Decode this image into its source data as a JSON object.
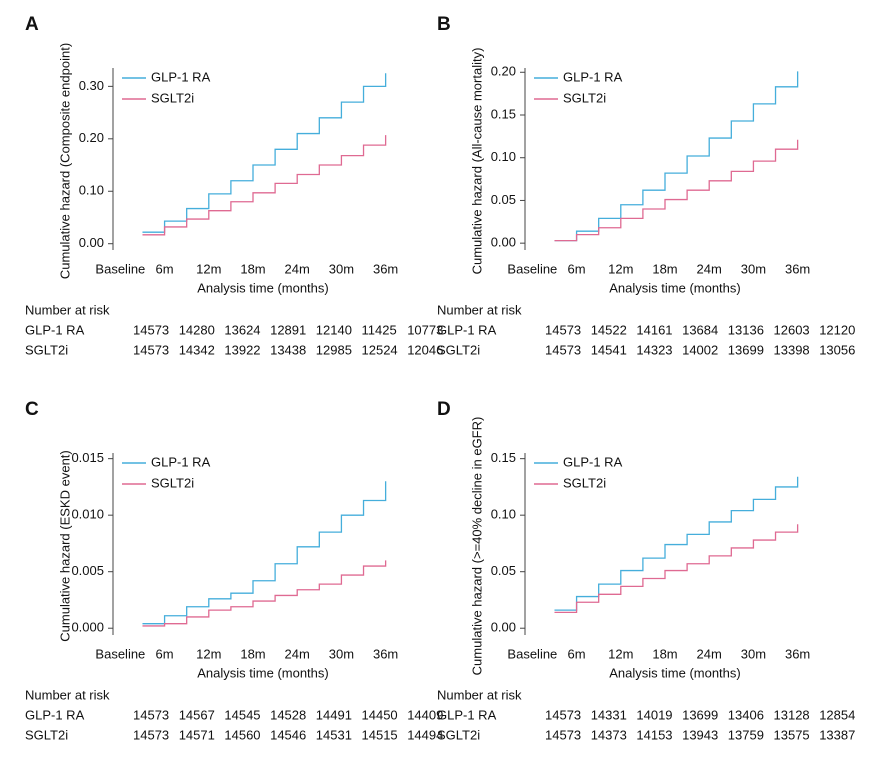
{
  "chart_data": [
    {
      "type": "line",
      "step": true,
      "label": "A",
      "ylabel": "Cumulative hazard (Composite endpoint)",
      "xlabel": "Analysis time (months)",
      "x": [
        3,
        6,
        9,
        12,
        15,
        18,
        21,
        24,
        27,
        30,
        33,
        36
      ],
      "xlim": [
        -1,
        37
      ],
      "xticks": [
        {
          "value": 0,
          "label": "Baseline"
        },
        {
          "value": 6,
          "label": "6m"
        },
        {
          "value": 12,
          "label": "12m"
        },
        {
          "value": 18,
          "label": "18m"
        },
        {
          "value": 24,
          "label": "24m"
        },
        {
          "value": 30,
          "label": "30m"
        },
        {
          "value": 36,
          "label": "36m"
        }
      ],
      "ylim": [
        -0.012,
        0.335
      ],
      "yticks": [
        {
          "value": 0,
          "label": "0.00"
        },
        {
          "value": 0.1,
          "label": "0.10"
        },
        {
          "value": 0.2,
          "label": "0.20"
        },
        {
          "value": 0.3,
          "label": "0.30"
        }
      ],
      "legend": "upper left",
      "series": [
        {
          "name": "GLP-1 RA",
          "color": "#45aedb",
          "values": [
            0.022,
            0.043,
            0.067,
            0.095,
            0.12,
            0.15,
            0.18,
            0.21,
            0.24,
            0.27,
            0.3,
            0.325
          ]
        },
        {
          "name": "SGLT2i",
          "color": "#df6a92",
          "values": [
            0.017,
            0.032,
            0.047,
            0.063,
            0.08,
            0.097,
            0.115,
            0.132,
            0.15,
            0.168,
            0.188,
            0.207
          ]
        }
      ],
      "risk_table": {
        "title": "Number at risk",
        "rows": [
          {
            "name": "GLP-1 RA",
            "values": [
              14573,
              14280,
              13624,
              12891,
              12140,
              11425,
              10773
            ]
          },
          {
            "name": "SGLT2i",
            "values": [
              14573,
              14342,
              13922,
              13438,
              12985,
              12524,
              12046
            ]
          }
        ]
      }
    },
    {
      "type": "line",
      "step": true,
      "label": "B",
      "ylabel": "Cumulative hazard (All-cause mortality)",
      "xlabel": "Analysis time (months)",
      "x": [
        3,
        6,
        9,
        12,
        15,
        18,
        21,
        24,
        27,
        30,
        33,
        36
      ],
      "xlim": [
        -1,
        37
      ],
      "xticks": [
        {
          "value": 0,
          "label": "Baseline"
        },
        {
          "value": 6,
          "label": "6m"
        },
        {
          "value": 12,
          "label": "12m"
        },
        {
          "value": 18,
          "label": "18m"
        },
        {
          "value": 24,
          "label": "24m"
        },
        {
          "value": 30,
          "label": "30m"
        },
        {
          "value": 36,
          "label": "36m"
        }
      ],
      "ylim": [
        -0.008,
        0.205
      ],
      "yticks": [
        {
          "value": 0,
          "label": "0.00"
        },
        {
          "value": 0.05,
          "label": "0.05"
        },
        {
          "value": 0.1,
          "label": "0.10"
        },
        {
          "value": 0.15,
          "label": "0.15"
        },
        {
          "value": 0.2,
          "label": "0.20"
        }
      ],
      "legend": "upper left",
      "series": [
        {
          "name": "GLP-1 RA",
          "color": "#45aedb",
          "values": [
            0.003,
            0.014,
            0.029,
            0.045,
            0.062,
            0.082,
            0.102,
            0.123,
            0.143,
            0.163,
            0.183,
            0.201
          ]
        },
        {
          "name": "SGLT2i",
          "color": "#df6a92",
          "values": [
            0.003,
            0.01,
            0.018,
            0.029,
            0.04,
            0.051,
            0.062,
            0.073,
            0.084,
            0.096,
            0.11,
            0.121
          ]
        }
      ],
      "risk_table": {
        "title": "Number at risk",
        "rows": [
          {
            "name": "GLP-1 RA",
            "values": [
              14573,
              14522,
              14161,
              13684,
              13136,
              12603,
              12120
            ]
          },
          {
            "name": "SGLT2i",
            "values": [
              14573,
              14541,
              14323,
              14002,
              13699,
              13398,
              13056
            ]
          }
        ]
      }
    },
    {
      "type": "line",
      "step": true,
      "label": "C",
      "ylabel": "Cumulative hazard (ESKD event)",
      "xlabel": "Analysis time (months)",
      "x": [
        3,
        6,
        9,
        12,
        15,
        18,
        21,
        24,
        27,
        30,
        33,
        36
      ],
      "xlim": [
        -1,
        37
      ],
      "xticks": [
        {
          "value": 0,
          "label": "Baseline"
        },
        {
          "value": 6,
          "label": "6m"
        },
        {
          "value": 12,
          "label": "12m"
        },
        {
          "value": 18,
          "label": "18m"
        },
        {
          "value": 24,
          "label": "24m"
        },
        {
          "value": 30,
          "label": "30m"
        },
        {
          "value": 36,
          "label": "36m"
        }
      ],
      "ylim": [
        -0.0006,
        0.0155
      ],
      "yticks": [
        {
          "value": 0,
          "label": "0.000"
        },
        {
          "value": 0.005,
          "label": "0.005"
        },
        {
          "value": 0.01,
          "label": "0.010"
        },
        {
          "value": 0.015,
          "label": "0.015"
        }
      ],
      "legend": "upper left",
      "series": [
        {
          "name": "GLP-1 RA",
          "color": "#45aedb",
          "values": [
            0.0004,
            0.0011,
            0.0019,
            0.0026,
            0.0031,
            0.0042,
            0.0057,
            0.0072,
            0.0085,
            0.01,
            0.0113,
            0.013
          ]
        },
        {
          "name": "SGLT2i",
          "color": "#df6a92",
          "values": [
            0.0002,
            0.0004,
            0.001,
            0.0016,
            0.0019,
            0.0024,
            0.0029,
            0.0034,
            0.0039,
            0.0047,
            0.0055,
            0.006
          ]
        }
      ],
      "risk_table": {
        "title": "Number at risk",
        "rows": [
          {
            "name": "GLP-1 RA",
            "values": [
              14573,
              14567,
              14545,
              14528,
              14491,
              14450,
              14409
            ]
          },
          {
            "name": "SGLT2i",
            "values": [
              14573,
              14571,
              14560,
              14546,
              14531,
              14515,
              14494
            ]
          }
        ]
      }
    },
    {
      "type": "line",
      "step": true,
      "label": "D",
      "ylabel": "Cumulative hazard (>=40% decline in eGFR)",
      "xlabel": "Analysis time (months)",
      "x": [
        3,
        6,
        9,
        12,
        15,
        18,
        21,
        24,
        27,
        30,
        33,
        36
      ],
      "xlim": [
        -1,
        37
      ],
      "xticks": [
        {
          "value": 0,
          "label": "Baseline"
        },
        {
          "value": 6,
          "label": "6m"
        },
        {
          "value": 12,
          "label": "12m"
        },
        {
          "value": 18,
          "label": "18m"
        },
        {
          "value": 24,
          "label": "24m"
        },
        {
          "value": 30,
          "label": "30m"
        },
        {
          "value": 36,
          "label": "36m"
        }
      ],
      "ylim": [
        -0.006,
        0.155
      ],
      "yticks": [
        {
          "value": 0,
          "label": "0.00"
        },
        {
          "value": 0.05,
          "label": "0.05"
        },
        {
          "value": 0.1,
          "label": "0.10"
        },
        {
          "value": 0.15,
          "label": "0.15"
        }
      ],
      "legend": "upper left",
      "series": [
        {
          "name": "GLP-1 RA",
          "color": "#45aedb",
          "values": [
            0.016,
            0.028,
            0.039,
            0.051,
            0.062,
            0.074,
            0.083,
            0.094,
            0.104,
            0.114,
            0.125,
            0.134
          ]
        },
        {
          "name": "SGLT2i",
          "color": "#df6a92",
          "values": [
            0.014,
            0.023,
            0.03,
            0.037,
            0.044,
            0.051,
            0.057,
            0.064,
            0.071,
            0.078,
            0.085,
            0.092
          ]
        }
      ],
      "risk_table": {
        "title": "Number at risk",
        "rows": [
          {
            "name": "GLP-1 RA",
            "values": [
              14573,
              14331,
              14019,
              13699,
              13406,
              13128,
              12854
            ]
          },
          {
            "name": "SGLT2i",
            "values": [
              14573,
              14373,
              14153,
              13943,
              13759,
              13575,
              13387
            ]
          }
        ]
      }
    }
  ]
}
